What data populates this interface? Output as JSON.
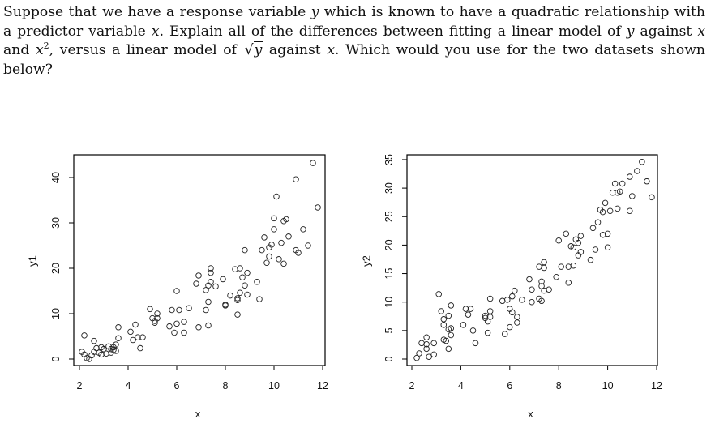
{
  "question": {
    "line1_a": "Suppose that we have a response variable ",
    "line1_var": "y",
    "line1_b": " which is known to have a quadratic relationship with",
    "line2_a": "a predictor variable ",
    "line2_var1": "x",
    "line2_b": ". Explain all of the differences between fitting a linear model of ",
    "line2_var2": "y",
    "line2_c": " against ",
    "line2_var3": "x",
    "line3_a": "and ",
    "line3_var1": "x",
    "line3_sup": "2",
    "line3_b": ", versus a linear model of ",
    "line3_sqrt_prefix": "√",
    "line3_sqrt_var": "y",
    "line3_c": " against ",
    "line3_var2": "x",
    "line3_d": ". Which would you use for the two datasets shown",
    "line4": "below?"
  },
  "chart_data": [
    {
      "type": "scatter",
      "title": "",
      "xlabel": "x",
      "ylabel": "y1",
      "xlim": [
        1.8,
        12.1
      ],
      "ylim": [
        -1.5,
        44.5
      ],
      "xticks": [
        2,
        4,
        6,
        8,
        10,
        12
      ],
      "yticks": [
        0,
        10,
        20,
        30,
        40
      ],
      "grid": false,
      "marker": "open-circle",
      "x": [
        2.1,
        2.2,
        2.2,
        2.3,
        2.4,
        2.5,
        2.6,
        2.6,
        2.7,
        2.8,
        2.9,
        2.9,
        3.0,
        3.1,
        3.2,
        3.3,
        3.3,
        3.4,
        3.4,
        3.5,
        3.5,
        3.6,
        3.6,
        4.1,
        4.2,
        4.3,
        4.4,
        4.5,
        4.6,
        4.9,
        5.0,
        5.1,
        5.1,
        5.2,
        5.2,
        5.7,
        5.8,
        5.9,
        6.0,
        6.0,
        6.1,
        6.3,
        6.3,
        6.5,
        6.8,
        6.9,
        6.9,
        7.2,
        7.2,
        7.3,
        7.3,
        7.3,
        7.4,
        7.4,
        7.4,
        7.6,
        7.9,
        8.0,
        8.0,
        8.2,
        8.4,
        8.5,
        8.5,
        8.5,
        8.6,
        8.6,
        8.7,
        8.8,
        8.8,
        8.9,
        8.9,
        9.3,
        9.4,
        9.5,
        9.6,
        9.7,
        9.8,
        9.8,
        9.9,
        10.0,
        10.0,
        10.1,
        10.2,
        10.3,
        10.4,
        10.4,
        10.5,
        10.6,
        10.9,
        10.9,
        11.0,
        11.2,
        11.4,
        11.6,
        11.8
      ],
      "y": [
        1.6,
        1.0,
        5.2,
        0.2,
        0.0,
        0.8,
        4.0,
        1.6,
        2.4,
        1.4,
        2.6,
        1.0,
        2.2,
        1.2,
        2.8,
        1.4,
        2.2,
        2.6,
        2.0,
        3.2,
        1.8,
        7.0,
        4.6,
        6.0,
        4.2,
        7.6,
        4.8,
        2.4,
        4.8,
        11.0,
        9.0,
        8.0,
        8.4,
        10.0,
        9.0,
        7.2,
        10.8,
        5.8,
        7.8,
        15.0,
        10.8,
        8.2,
        5.8,
        11.2,
        16.6,
        7.0,
        18.4,
        10.8,
        15.2,
        12.6,
        7.4,
        16.2,
        19.0,
        17.0,
        20.0,
        16.0,
        17.6,
        11.8,
        12.0,
        14.0,
        19.8,
        13.4,
        9.8,
        13.0,
        14.6,
        20.0,
        18.0,
        16.2,
        24.0,
        14.2,
        19.0,
        17.0,
        13.2,
        24.0,
        26.8,
        21.2,
        22.6,
        24.6,
        25.2,
        31.0,
        28.6,
        35.8,
        22.0,
        25.6,
        21.0,
        30.4,
        30.8,
        27.0,
        39.6,
        24.0,
        23.4,
        28.6,
        25.0,
        43.2,
        33.4
      ]
    },
    {
      "type": "scatter",
      "title": "",
      "xlabel": "x",
      "ylabel": "y2",
      "xlim": [
        1.8,
        12.1
      ],
      "ylim": [
        -1.3,
        35.8
      ],
      "xticks": [
        2,
        4,
        6,
        8,
        10,
        12
      ],
      "yticks": [
        0,
        5,
        10,
        15,
        20,
        25,
        30,
        35
      ],
      "grid": false,
      "marker": "open-circle",
      "x": [
        2.2,
        2.3,
        2.4,
        2.6,
        2.6,
        2.6,
        2.7,
        2.9,
        2.9,
        3.1,
        3.2,
        3.3,
        3.3,
        3.3,
        3.4,
        3.5,
        3.5,
        3.5,
        3.6,
        3.6,
        3.6,
        4.1,
        4.2,
        4.3,
        4.4,
        4.5,
        4.6,
        5.0,
        5.0,
        5.1,
        5.1,
        5.2,
        5.2,
        5.2,
        5.7,
        5.8,
        5.9,
        6.0,
        6.0,
        6.1,
        6.1,
        6.2,
        6.3,
        6.3,
        6.5,
        6.8,
        6.9,
        6.9,
        7.2,
        7.2,
        7.3,
        7.3,
        7.3,
        7.4,
        7.4,
        7.4,
        7.6,
        7.9,
        8.0,
        8.1,
        8.3,
        8.4,
        8.4,
        8.5,
        8.6,
        8.6,
        8.7,
        8.8,
        8.8,
        8.9,
        8.9,
        9.3,
        9.4,
        9.5,
        9.6,
        9.7,
        9.8,
        9.8,
        9.9,
        10.0,
        10.0,
        10.1,
        10.2,
        10.3,
        10.4,
        10.4,
        10.5,
        10.6,
        10.9,
        10.9,
        11.0,
        11.2,
        11.4,
        11.6,
        11.8
      ],
      "y": [
        0.2,
        1.0,
        2.8,
        1.8,
        3.8,
        2.6,
        0.4,
        0.8,
        2.8,
        11.4,
        8.4,
        6.0,
        7.0,
        3.4,
        3.2,
        7.6,
        1.8,
        5.2,
        9.4,
        5.4,
        4.2,
        6.0,
        8.8,
        7.8,
        8.8,
        5.0,
        2.8,
        7.2,
        7.6,
        4.6,
        6.6,
        8.4,
        10.6,
        7.4,
        10.2,
        4.4,
        10.4,
        8.8,
        5.6,
        11.0,
        8.2,
        12.0,
        6.4,
        7.4,
        10.4,
        14.0,
        10.0,
        12.2,
        16.2,
        10.6,
        10.2,
        13.6,
        12.8,
        17.0,
        12.0,
        16.0,
        12.2,
        14.4,
        20.8,
        16.2,
        22.0,
        16.2,
        13.4,
        19.8,
        16.4,
        19.6,
        21.0,
        20.4,
        18.2,
        21.6,
        18.8,
        17.4,
        23.0,
        19.2,
        24.0,
        26.2,
        21.8,
        25.8,
        27.4,
        19.6,
        22.0,
        26.0,
        29.2,
        30.8,
        26.4,
        29.2,
        29.4,
        30.8,
        32.0,
        26.0,
        28.6,
        33.0,
        34.6,
        31.2,
        28.4
      ]
    }
  ]
}
